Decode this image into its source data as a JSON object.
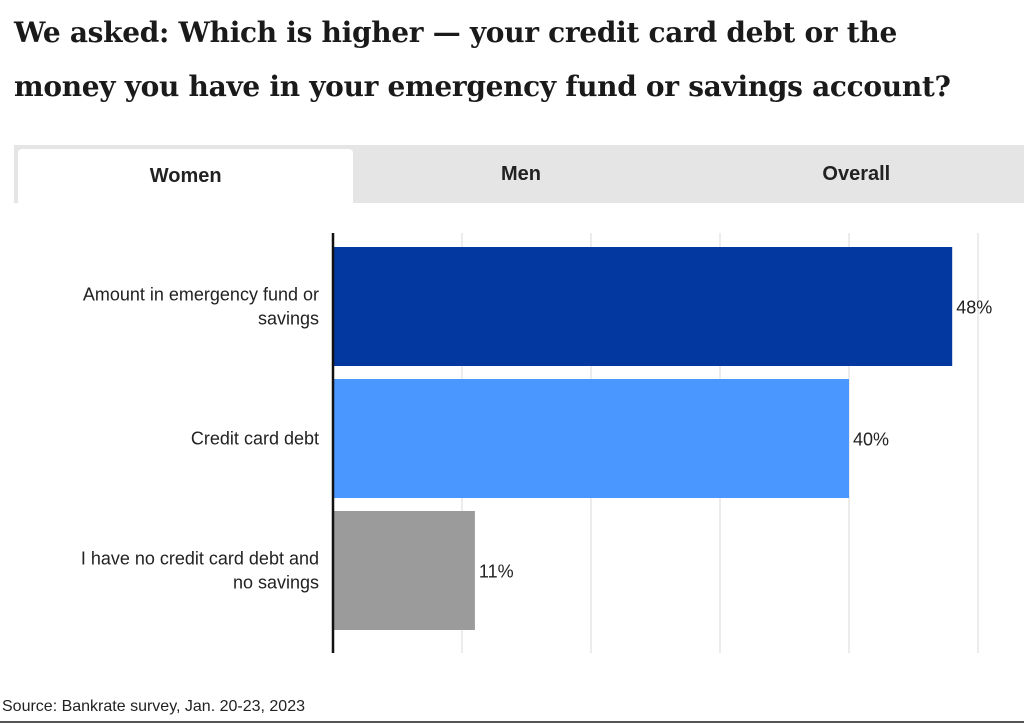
{
  "title": "We asked: Which is higher — your credit card debt or the money you have in your emergency fund or savings account?",
  "tabs": [
    {
      "label": "Women",
      "active": true
    },
    {
      "label": "Men",
      "active": false
    },
    {
      "label": "Overall",
      "active": false
    }
  ],
  "source": "Source: Bankrate survey, Jan. 20-23, 2023",
  "chart_data": {
    "type": "bar",
    "orientation": "horizontal",
    "categories": [
      "Amount in emergency fund or savings",
      "Credit card debt",
      "I have no credit card debt and no savings"
    ],
    "values": [
      48,
      40,
      11
    ],
    "value_labels": [
      "48%",
      "40%",
      "11%"
    ],
    "colors": [
      "#0238a0",
      "#4a98ff",
      "#9b9b9b"
    ],
    "xlim": [
      0,
      50
    ],
    "grid": true,
    "gridline_color": "#d9d9d9"
  }
}
